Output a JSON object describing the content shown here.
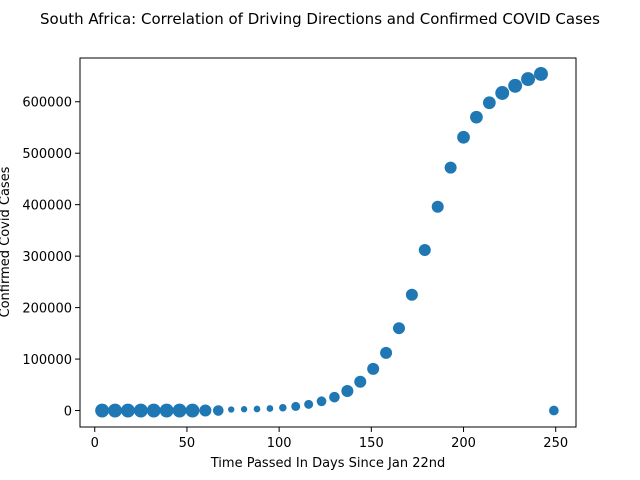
{
  "chart_data": {
    "type": "scatter",
    "title": "South Africa: Correlation of Driving Directions and Confirmed COVID Cases",
    "xlabel": "Time Passed In Days Since Jan 22nd",
    "ylabel": "Confirmed Covid Cases",
    "xlim": [
      -8,
      261
    ],
    "ylim": [
      -32000,
      685000
    ],
    "xticks": [
      0,
      50,
      100,
      150,
      200,
      250
    ],
    "yticks": [
      0,
      100000,
      200000,
      300000,
      400000,
      500000,
      600000
    ],
    "grid": false,
    "legend": "none",
    "marker_color": "#1f77b4",
    "series": [
      {
        "x": [
          4,
          11,
          18,
          25,
          32,
          39,
          46,
          53,
          60,
          67,
          74,
          81,
          88,
          95,
          102,
          109,
          116,
          123,
          130,
          137,
          144,
          151,
          158,
          165,
          172,
          179,
          186,
          193,
          200,
          207,
          214,
          221,
          228,
          235,
          242,
          249
        ],
        "y": [
          0,
          0,
          0,
          0,
          0,
          0,
          0,
          0,
          0,
          0,
          2000,
          2500,
          3000,
          4000,
          5500,
          8000,
          12000,
          18000,
          26000,
          38000,
          56000,
          81000,
          112000,
          160000,
          225000,
          312000,
          396000,
          472000,
          531000,
          570000,
          598000,
          617000,
          631000,
          644000,
          654000,
          0
        ],
        "size": [
          86,
          86,
          86,
          86,
          86,
          86,
          86,
          86,
          64,
          50,
          18,
          18,
          20,
          20,
          25,
          36,
          36,
          42,
          50,
          64,
          64,
          64,
          64,
          64,
          64,
          64,
          64,
          64,
          72,
          72,
          72,
          86,
          86,
          86,
          86,
          42
        ]
      }
    ]
  }
}
